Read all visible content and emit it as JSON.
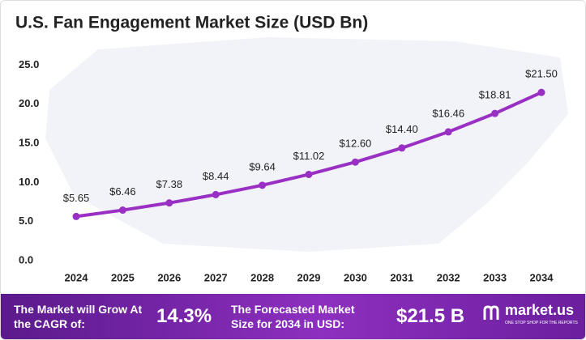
{
  "chart_data": {
    "type": "line",
    "title": "U.S. Fan Engagement Market Size  (USD Bn)",
    "categories": [
      "2024",
      "2025",
      "2026",
      "2027",
      "2028",
      "2029",
      "2030",
      "2031",
      "2032",
      "2033",
      "2034"
    ],
    "values": [
      5.65,
      6.46,
      7.38,
      8.44,
      9.64,
      11.02,
      12.6,
      14.4,
      16.46,
      18.81,
      21.5
    ],
    "value_labels": [
      "$5.65",
      "$6.46",
      "$7.38",
      "$8.44",
      "$9.64",
      "$11.02",
      "$12.60",
      "$14.40",
      "$16.46",
      "$18.81",
      "$21.50"
    ],
    "color": "#9a2fc4",
    "ylim": [
      0,
      27
    ],
    "yticks": [
      {
        "value": 0,
        "label": "0.0"
      },
      {
        "value": 5,
        "label": "5.0"
      },
      {
        "value": 10,
        "label": "10.0"
      },
      {
        "value": 15,
        "label": "15.0"
      },
      {
        "value": 20,
        "label": "20.0"
      },
      {
        "value": 25,
        "label": "25.0"
      }
    ],
    "grid": false
  },
  "footer": {
    "cagr_text": "The Market will Grow At the CAGR of:",
    "cagr_value": "14.3%",
    "forecast_text": "The Forecasted Market Size for 2034 in USD:",
    "forecast_value": "$21.5 B",
    "brand": "market.us",
    "tagline": "ONE STOP SHOP FOR THE REPORTS"
  }
}
